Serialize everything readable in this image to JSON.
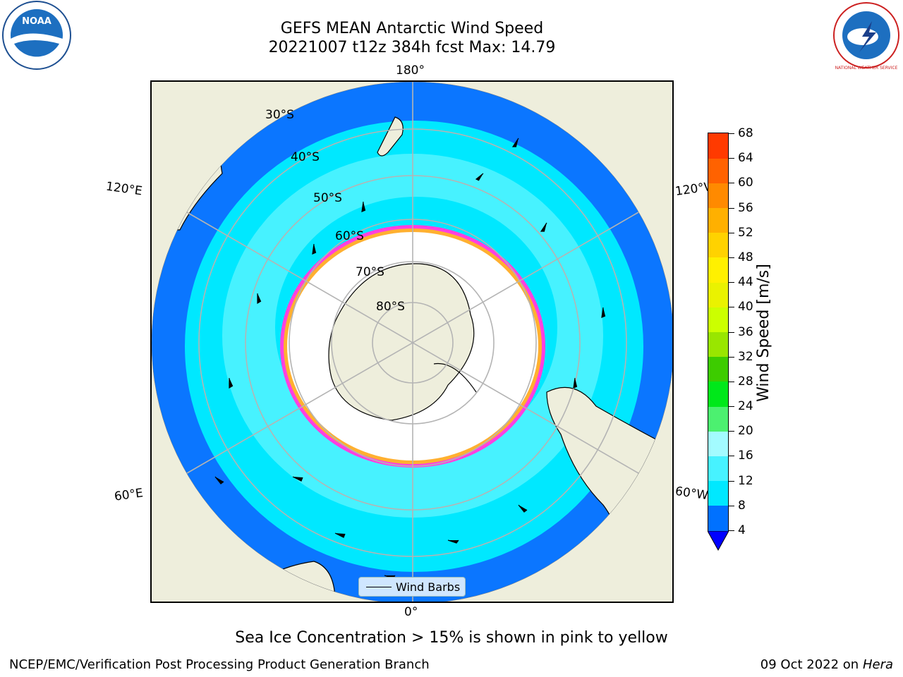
{
  "title_line1": "GEFS MEAN Antarctic Wind Speed",
  "title_line2": "20221007 t12z 384h fcst   Max: 14.79",
  "logos": {
    "left": "NOAA",
    "right": "NATIONAL WEATHER SERVICE"
  },
  "lon_labels": {
    "top": "180°",
    "bottom": "0°",
    "upper_left": "120°E",
    "upper_right": "120°W",
    "lower_left": "60°E",
    "lower_right": "60°W"
  },
  "lat_labels": [
    "30°S",
    "40°S",
    "50°S",
    "60°S",
    "70°S",
    "80°S"
  ],
  "legend": {
    "label": "Wind Barbs"
  },
  "colorbar": {
    "label": "Wind Speed [m/s]",
    "ticks": [
      68,
      64,
      60,
      56,
      52,
      48,
      44,
      40,
      36,
      32,
      28,
      24,
      20,
      16,
      12,
      8,
      4
    ],
    "colors": [
      "#0000ff",
      "#0071ff",
      "#00e8ff",
      "#47f2ff",
      "#a3fbff",
      "#4cf070",
      "#00e81a",
      "#3dcc00",
      "#99e600",
      "#ccff00",
      "#eaf200",
      "#fff000",
      "#ffd200",
      "#ffb000",
      "#ff8a00",
      "#ff6200",
      "#ff3a00",
      "#ff0000"
    ]
  },
  "note": "Sea Ice Concentration > 15% is shown in pink to yellow",
  "footer_left": "NCEP/EMC/Verification Post Processing Product Generation Branch",
  "footer_right_date": "09 Oct 2022 on ",
  "footer_right_host": "Hera"
}
